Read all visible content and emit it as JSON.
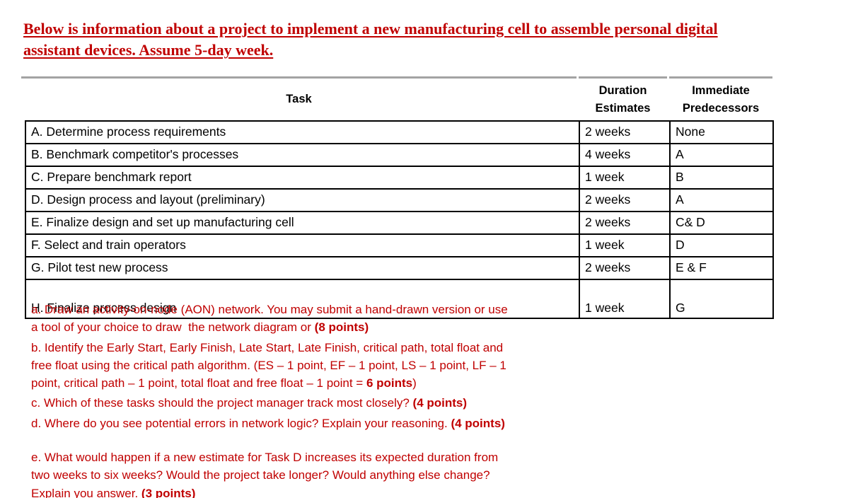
{
  "title": {
    "line1": "Below is information about a project to implement a new manufacturing cell to assemble personal digital",
    "line2": "assistant devices. Assume 5-day week."
  },
  "table": {
    "headers": {
      "task": "Task",
      "duration_line1": "Duration",
      "duration_line2": "Estimates",
      "predecessors_line1": "Immediate",
      "predecessors_line2": "Predecessors"
    },
    "rows": [
      {
        "task": "A. Determine process requirements",
        "duration": "2 weeks",
        "predecessors": "None"
      },
      {
        "task": "B. Benchmark competitor's processes",
        "duration": "4 weeks",
        "predecessors": "A"
      },
      {
        "task": "C. Prepare benchmark report",
        "duration": "1 week",
        "predecessors": "B"
      },
      {
        "task": "D. Design process and layout (preliminary)",
        "duration": "2 weeks",
        "predecessors": "A"
      },
      {
        "task": "E. Finalize design and set up manufacturing cell",
        "duration": "2 weeks",
        "predecessors": "C& D"
      },
      {
        "task": "F. Select and train operators",
        "duration": "1 week",
        "predecessors": "D"
      },
      {
        "task": "G. Pilot test new process",
        "duration": "2 weeks",
        "predecessors": "E & F"
      },
      {
        "task": "H. Finalize process design",
        "duration": "1 week",
        "predecessors": "G",
        "tall": true
      }
    ]
  },
  "questions": {
    "paragraphs": [
      {
        "lines": [
          [
            {
              "t": "a. Draw an activity-on-node (AON) network. You may submit a hand-drawn version or use"
            }
          ],
          [
            {
              "t": "a tool of your choice to draw  the network diagram or "
            },
            {
              "t": "(8 points)",
              "b": true
            }
          ]
        ]
      },
      {
        "lines": [
          [
            {
              "t": "b. Identify the Early Start, Early Finish, Late Start, Late Finish, critical path, total float and"
            }
          ],
          [
            {
              "t": "free float using the critical path algorithm. (ES – 1 point, EF – 1 point, LS – 1 point, LF – 1"
            }
          ],
          [
            {
              "t": "point, critical path – 1 point, total float and free float – 1 point = "
            },
            {
              "t": "6 points",
              "b": true
            },
            {
              "t": ")"
            }
          ]
        ]
      },
      {
        "lines": [
          [
            {
              "t": "c. Which of these tasks should the project manager track most closely? "
            },
            {
              "t": "(4 points)",
              "b": true
            }
          ]
        ]
      },
      {
        "lines": [
          [
            {
              "t": "d. Where do you see potential errors in network logic? Explain your reasoning. "
            },
            {
              "t": "(4 points)",
              "b": true
            }
          ]
        ]
      },
      {
        "spacer": true
      },
      {
        "lines": [
          [
            {
              "t": "e. What would happen if a new estimate for Task D increases its expected duration from"
            }
          ],
          [
            {
              "t": "two weeks to six weeks? Would the project take longer? Would anything else change?"
            }
          ],
          [
            {
              "t": "Explain you answer. "
            },
            {
              "t": "(3 points)",
              "b": true
            }
          ]
        ]
      }
    ]
  },
  "colors": {
    "accent_red": "#C00000",
    "table_border": "#000000",
    "header_rule": "#A3A3A3",
    "text_black": "#000000",
    "background": "#FFFFFF"
  }
}
